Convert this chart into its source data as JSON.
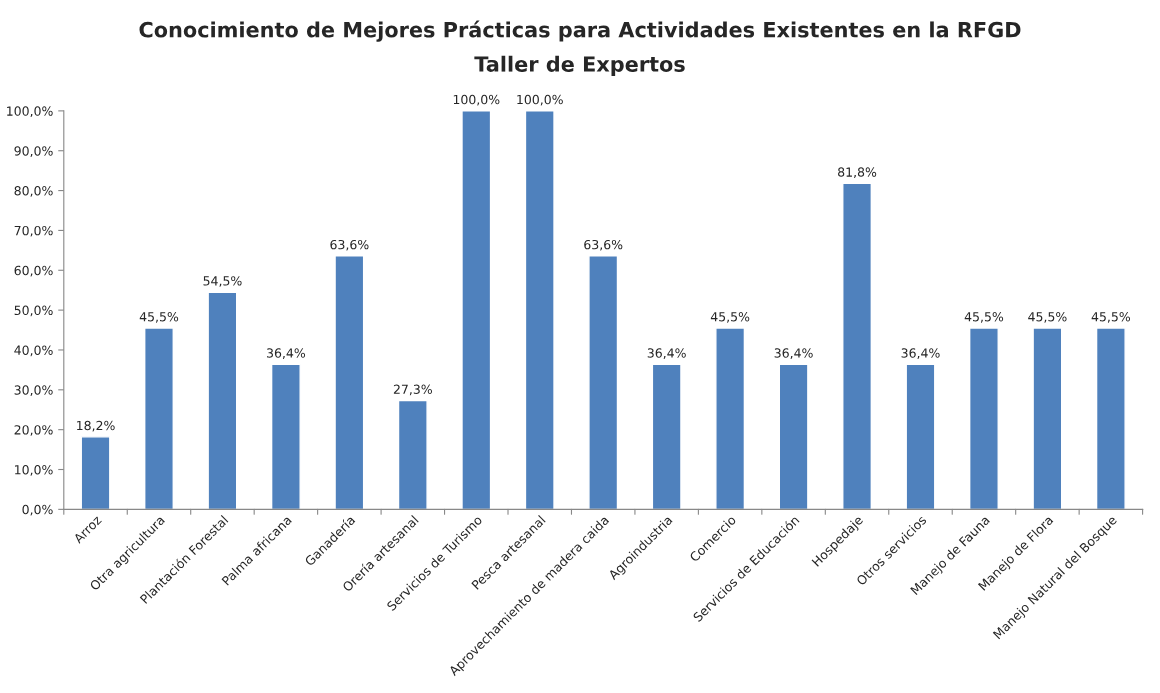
{
  "chart_data": {
    "type": "bar",
    "title": "Conocimiento de Mejores Prácticas para Actividades Existentes en la RFGD",
    "subtitle": "Taller de Expertos",
    "categories": [
      "Arroz",
      "Otra agricultura",
      "Plantación Forestal",
      "Palma africana",
      "Ganadería",
      "Orería artesanal",
      "Servicios de Turismo",
      "Pesca artesanal",
      "Aprovechamiento de madera caida",
      "Agroindustria",
      "Comercio",
      "Servicios de Educación",
      "Hospedaje",
      "Otros servicios",
      "Manejo de Fauna",
      "Manejo de Flora",
      "Manejo Natural del Bosque"
    ],
    "values": [
      18.2,
      45.5,
      54.5,
      36.4,
      63.6,
      27.3,
      100.0,
      100.0,
      63.6,
      36.4,
      45.5,
      36.4,
      81.8,
      36.4,
      45.5,
      45.5,
      45.5
    ],
    "value_labels": [
      "18,2%",
      "45,5%",
      "54,5%",
      "36,4%",
      "63,6%",
      "27,3%",
      "100,0%",
      "100,0%",
      "63,6%",
      "36,4%",
      "45,5%",
      "36,4%",
      "81,8%",
      "36,4%",
      "45,5%",
      "45,5%",
      "45,5%"
    ],
    "color": "#4f81bd",
    "ylim": [
      0,
      100
    ],
    "yticks": [
      {
        "value": 0,
        "label": "0,0%"
      },
      {
        "value": 10,
        "label": "10,0%"
      },
      {
        "value": 20,
        "label": "20,0%"
      },
      {
        "value": 30,
        "label": "30,0%"
      },
      {
        "value": 40,
        "label": "40,0%"
      },
      {
        "value": 50,
        "label": "50,0%"
      },
      {
        "value": 60,
        "label": "60,0%"
      },
      {
        "value": 70,
        "label": "70,0%"
      },
      {
        "value": 80,
        "label": "80,0%"
      },
      {
        "value": 90,
        "label": "90,0%"
      },
      {
        "value": 100,
        "label": "100,0%"
      }
    ],
    "grid": false,
    "legend": false
  }
}
